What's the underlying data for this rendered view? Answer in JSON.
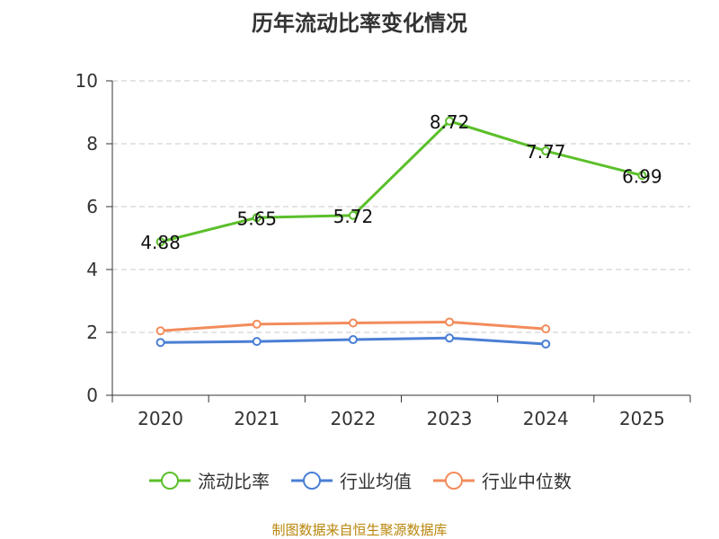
{
  "chart_data": {
    "type": "line",
    "title": "历年流动比率变化情况",
    "categories": [
      "2020",
      "2021",
      "2022",
      "2023",
      "2024",
      "2025"
    ],
    "ylim": [
      0,
      10
    ],
    "yticks": [
      "0",
      "2",
      "4",
      "6",
      "8",
      "10"
    ],
    "grid": true,
    "legend_position": "bottom",
    "series": [
      {
        "name": "流动比率",
        "color": "#5bbf2a",
        "values": [
          4.88,
          5.65,
          5.72,
          8.72,
          7.77,
          6.99
        ],
        "labels": [
          "4.88",
          "5.65",
          "5.72",
          "8.72",
          "7.77",
          "6.99"
        ]
      },
      {
        "name": "行业均值",
        "color": "#4a7fd4",
        "values": [
          1.68,
          1.71,
          1.77,
          1.82,
          1.63,
          null
        ]
      },
      {
        "name": "行业中位数",
        "color": "#f28c5c",
        "values": [
          2.05,
          2.26,
          2.3,
          2.33,
          2.11,
          null
        ]
      }
    ]
  },
  "source": "制图数据来自恒生聚源数据库"
}
